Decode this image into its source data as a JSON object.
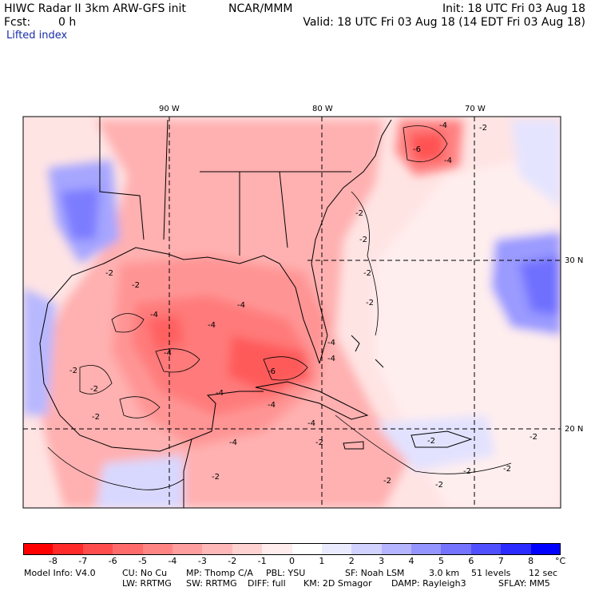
{
  "header": {
    "title": "HIWC Radar II 3km ARW-GFS init",
    "org": "NCAR/MMM",
    "init": "Init: 18 UTC Fri 03 Aug 18",
    "fcst_label": "Fcst:",
    "fcst_value": "0 h",
    "valid": "Valid: 18 UTC Fri 03 Aug 18 (14 EDT Fri 03 Aug 18)",
    "field": "Lifted index"
  },
  "map": {
    "lon_labels": [
      "90 W",
      "80 W",
      "70 W"
    ],
    "lat_labels": [
      "30 N",
      "20 N"
    ],
    "contour_labels": [
      "-2",
      "-4",
      "-6"
    ],
    "land_border_color": "#000000",
    "grid_color": "#000000"
  },
  "colorbar": {
    "ticks": [
      "-8",
      "-7",
      "-6",
      "-5",
      "-4",
      "-3",
      "-2",
      "-1",
      "0",
      "1",
      "2",
      "3",
      "4",
      "5",
      "6",
      "7",
      "8"
    ],
    "unit": "°C",
    "colors": [
      "#ff0000",
      "#ff2a2a",
      "#ff4d4d",
      "#ff6b6b",
      "#ff8585",
      "#ff9e9e",
      "#ffb8b8",
      "#ffd2d2",
      "#ffecec",
      "#ffffff",
      "#ebebff",
      "#d2d2ff",
      "#b5b5ff",
      "#9595ff",
      "#7474ff",
      "#5050ff",
      "#2b2bff",
      "#0000ff"
    ]
  },
  "footer": {
    "line1": [
      "Model Info: V4.0",
      "CU: No Cu",
      "MP: Thomp C/A",
      "PBL: YSU",
      "SF: Noah LSM",
      "3.0 km",
      "51 levels",
      "12 sec"
    ],
    "line2": [
      "LW: RRTMG",
      "SW: RRTMG",
      "DIFF: full",
      "KM: 2D Smagor",
      "DAMP: Rayleigh3",
      "SFLAY: MM5"
    ]
  }
}
